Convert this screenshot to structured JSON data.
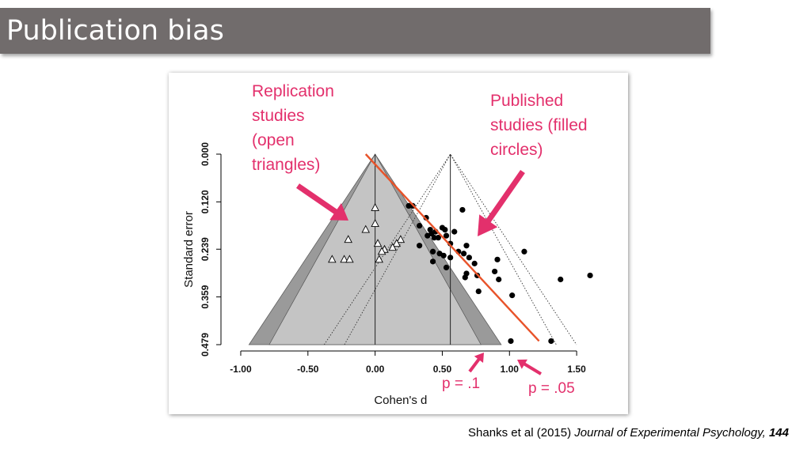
{
  "slide": {
    "title": "Publication bias",
    "citation": {
      "authors": "Shanks et al  (2015)",
      "journal": "Journal of Experimental Psychology,",
      "volume": "144"
    }
  },
  "annotations": {
    "replication": "Replication\nstudies\n(open\ntriangles)",
    "published": "Published\nstudies (filled\ncircles)",
    "p10": "p = .1",
    "p05": "p = .05"
  },
  "colors": {
    "annotation": "#e3306c",
    "regression_line": "#e8532a",
    "funnel_outer": "#9a9a9a",
    "funnel_inner": "#c4c4c4",
    "title_bar": "#716c6c"
  },
  "chart_data": {
    "type": "scatter",
    "title": "",
    "xlabel": "Cohen's d",
    "ylabel": "Standard error",
    "xlim": [
      -1.1,
      1.8
    ],
    "ylim": [
      0,
      0.479
    ],
    "y_inverted": true,
    "x_ticks": [
      -1.0,
      -0.5,
      0.0,
      0.5,
      1.0,
      1.5
    ],
    "x_tick_labels": [
      "-1.00",
      "-0.50",
      "0.00",
      "0.50",
      "1.00",
      "1.50"
    ],
    "y_ticks": [
      0,
      0.12,
      0.239,
      0.359,
      0.479
    ],
    "y_tick_labels": [
      "0.000",
      "0.120",
      "0.239",
      "0.359",
      "0.479"
    ],
    "funnels": [
      {
        "name": "replication funnel",
        "center": 0.0,
        "style": "shaded",
        "z_values": [
          1.645,
          1.96
        ]
      },
      {
        "name": "published funnel",
        "center": 0.56,
        "style": "dotted",
        "z_values": [
          1.645,
          1.96
        ]
      }
    ],
    "regression_line": {
      "x": [
        -0.07,
        1.22
      ],
      "y": [
        0.0,
        0.47
      ]
    },
    "series": [
      {
        "name": "Replication studies",
        "marker": "open-triangle",
        "points": [
          {
            "x": 0.0,
            "y": 0.135
          },
          {
            "x": 0.0,
            "y": 0.175
          },
          {
            "x": -0.07,
            "y": 0.19
          },
          {
            "x": -0.2,
            "y": 0.215
          },
          {
            "x": 0.02,
            "y": 0.225
          },
          {
            "x": 0.19,
            "y": 0.215
          },
          {
            "x": 0.16,
            "y": 0.225
          },
          {
            "x": 0.13,
            "y": 0.235
          },
          {
            "x": 0.07,
            "y": 0.24
          },
          {
            "x": 0.05,
            "y": 0.245
          },
          {
            "x": -0.32,
            "y": 0.265
          },
          {
            "x": -0.23,
            "y": 0.265
          },
          {
            "x": -0.19,
            "y": 0.265
          },
          {
            "x": 0.03,
            "y": 0.265
          }
        ]
      },
      {
        "name": "Published studies",
        "marker": "filled-circle",
        "points": [
          {
            "x": 0.25,
            "y": 0.13
          },
          {
            "x": 0.28,
            "y": 0.13
          },
          {
            "x": 0.65,
            "y": 0.14
          },
          {
            "x": 0.38,
            "y": 0.16
          },
          {
            "x": 0.33,
            "y": 0.18
          },
          {
            "x": 0.41,
            "y": 0.19
          },
          {
            "x": 0.45,
            "y": 0.195
          },
          {
            "x": 0.5,
            "y": 0.185
          },
          {
            "x": 0.52,
            "y": 0.19
          },
          {
            "x": 0.59,
            "y": 0.195
          },
          {
            "x": 0.39,
            "y": 0.205
          },
          {
            "x": 0.42,
            "y": 0.2
          },
          {
            "x": 0.44,
            "y": 0.21
          },
          {
            "x": 0.47,
            "y": 0.21
          },
          {
            "x": 0.53,
            "y": 0.205
          },
          {
            "x": 0.56,
            "y": 0.225
          },
          {
            "x": 0.68,
            "y": 0.23
          },
          {
            "x": 0.33,
            "y": 0.23
          },
          {
            "x": 0.43,
            "y": 0.245
          },
          {
            "x": 0.48,
            "y": 0.25
          },
          {
            "x": 0.51,
            "y": 0.255
          },
          {
            "x": 0.62,
            "y": 0.245
          },
          {
            "x": 0.66,
            "y": 0.25
          },
          {
            "x": 0.7,
            "y": 0.26
          },
          {
            "x": 0.56,
            "y": 0.26
          },
          {
            "x": 0.74,
            "y": 0.275
          },
          {
            "x": 0.91,
            "y": 0.265
          },
          {
            "x": 1.11,
            "y": 0.245
          },
          {
            "x": 0.43,
            "y": 0.27
          },
          {
            "x": 0.53,
            "y": 0.285
          },
          {
            "x": 0.68,
            "y": 0.3
          },
          {
            "x": 0.76,
            "y": 0.305
          },
          {
            "x": 0.89,
            "y": 0.295
          },
          {
            "x": 0.67,
            "y": 0.31
          },
          {
            "x": 0.92,
            "y": 0.315
          },
          {
            "x": 1.38,
            "y": 0.315
          },
          {
            "x": 1.6,
            "y": 0.305
          },
          {
            "x": 0.77,
            "y": 0.345
          },
          {
            "x": 1.02,
            "y": 0.355
          },
          {
            "x": 1.01,
            "y": 0.47
          },
          {
            "x": 1.31,
            "y": 0.47
          }
        ]
      }
    ]
  }
}
